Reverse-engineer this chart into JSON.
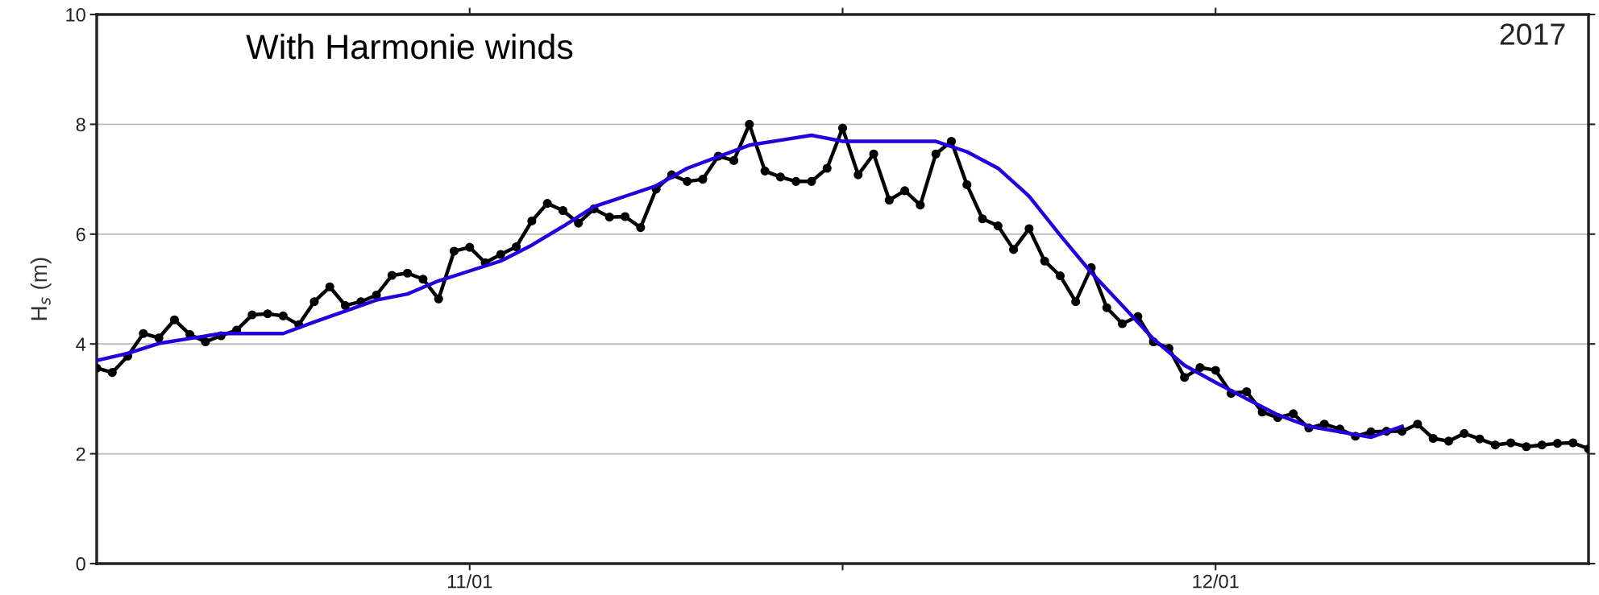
{
  "chart_data": {
    "type": "line",
    "title": "With Harmonie winds",
    "ylabel": "H$_{s}$ (m)",
    "annotations": [
      "2017"
    ],
    "xlim": [
      "2017-01-10T12:00",
      "2017-01-12T12:00"
    ],
    "xticks": [
      {
        "value": "2017-01-11T00:00",
        "label": "11/01"
      },
      {
        "value": "2017-01-11T12:00",
        "label": null
      },
      {
        "value": "2017-01-12T00:00",
        "label": "12/01"
      }
    ],
    "ylim": [
      0,
      10
    ],
    "yticks": [
      0,
      2,
      4,
      6,
      8,
      10
    ],
    "grid": "y",
    "line_style": "solid",
    "series": [
      {
        "color": "#000000",
        "marker": "circle",
        "x": [
          "2017-01-10T12:00",
          "2017-01-10T12:30",
          "2017-01-10T13:00",
          "2017-01-10T13:30",
          "2017-01-10T14:00",
          "2017-01-10T14:30",
          "2017-01-10T15:00",
          "2017-01-10T15:30",
          "2017-01-10T16:00",
          "2017-01-10T16:30",
          "2017-01-10T17:00",
          "2017-01-10T17:30",
          "2017-01-10T18:00",
          "2017-01-10T18:30",
          "2017-01-10T19:00",
          "2017-01-10T19:30",
          "2017-01-10T20:00",
          "2017-01-10T20:30",
          "2017-01-10T21:00",
          "2017-01-10T21:30",
          "2017-01-10T22:00",
          "2017-01-10T22:30",
          "2017-01-10T23:00",
          "2017-01-10T23:30",
          "2017-01-11T00:00",
          "2017-01-11T00:30",
          "2017-01-11T01:00",
          "2017-01-11T01:30",
          "2017-01-11T02:00",
          "2017-01-11T02:30",
          "2017-01-11T03:00",
          "2017-01-11T03:30",
          "2017-01-11T04:00",
          "2017-01-11T04:30",
          "2017-01-11T05:00",
          "2017-01-11T05:30",
          "2017-01-11T06:00",
          "2017-01-11T06:30",
          "2017-01-11T07:00",
          "2017-01-11T07:30",
          "2017-01-11T08:00",
          "2017-01-11T08:30",
          "2017-01-11T09:00",
          "2017-01-11T09:30",
          "2017-01-11T10:00",
          "2017-01-11T10:30",
          "2017-01-11T11:00",
          "2017-01-11T11:30",
          "2017-01-11T12:00",
          "2017-01-11T12:30",
          "2017-01-11T13:00",
          "2017-01-11T13:30",
          "2017-01-11T14:00",
          "2017-01-11T14:30",
          "2017-01-11T15:00",
          "2017-01-11T15:30",
          "2017-01-11T16:00",
          "2017-01-11T16:30",
          "2017-01-11T17:00",
          "2017-01-11T17:30",
          "2017-01-11T18:00",
          "2017-01-11T18:30",
          "2017-01-11T19:00",
          "2017-01-11T19:30",
          "2017-01-11T20:00",
          "2017-01-11T20:30",
          "2017-01-11T21:00",
          "2017-01-11T21:30",
          "2017-01-11T22:00",
          "2017-01-11T22:30",
          "2017-01-11T23:00",
          "2017-01-11T23:30",
          "2017-01-12T00:00",
          "2017-01-12T00:30",
          "2017-01-12T01:00",
          "2017-01-12T01:30",
          "2017-01-12T02:00",
          "2017-01-12T02:30",
          "2017-01-12T03:00",
          "2017-01-12T03:30",
          "2017-01-12T04:00",
          "2017-01-12T04:30",
          "2017-01-12T05:00",
          "2017-01-12T05:30",
          "2017-01-12T06:00",
          "2017-01-12T06:30",
          "2017-01-12T07:00",
          "2017-01-12T07:30",
          "2017-01-12T08:00",
          "2017-01-12T08:30",
          "2017-01-12T09:00",
          "2017-01-12T09:30",
          "2017-01-12T10:00",
          "2017-01-12T10:30",
          "2017-01-12T11:00",
          "2017-01-12T11:30",
          "2017-01-12T12:00"
        ],
        "values": [
          3.56,
          3.48,
          3.78,
          4.19,
          4.11,
          4.44,
          4.17,
          4.04,
          4.15,
          4.25,
          4.53,
          4.55,
          4.51,
          4.35,
          4.77,
          5.04,
          4.7,
          4.77,
          4.89,
          5.25,
          5.29,
          5.18,
          4.82,
          5.69,
          5.76,
          5.48,
          5.63,
          5.77,
          6.24,
          6.56,
          6.43,
          6.2,
          6.46,
          6.31,
          6.32,
          6.12,
          6.82,
          7.08,
          6.96,
          7.0,
          7.42,
          7.34,
          8.0,
          7.15,
          7.04,
          6.96,
          6.96,
          7.2,
          7.93,
          7.08,
          7.46,
          6.62,
          6.79,
          6.53,
          7.46,
          7.69,
          6.9,
          6.28,
          6.15,
          5.72,
          6.1,
          5.51,
          5.24,
          4.77,
          5.39,
          4.66,
          4.37,
          4.5,
          4.04,
          3.92,
          3.39,
          3.57,
          3.52,
          3.1,
          3.13,
          2.76,
          2.66,
          2.73,
          2.47,
          2.54,
          2.45,
          2.32,
          2.4,
          2.41,
          2.41,
          2.54,
          2.28,
          2.23,
          2.37,
          2.27,
          2.16,
          2.2,
          2.13,
          2.16,
          2.19,
          2.2,
          2.09
        ]
      },
      {
        "color": "#2200dd",
        "marker": "none",
        "x": [
          "2017-01-10T12:00",
          "2017-01-10T13:00",
          "2017-01-10T14:00",
          "2017-01-10T15:00",
          "2017-01-10T16:00",
          "2017-01-10T17:00",
          "2017-01-10T18:00",
          "2017-01-10T19:00",
          "2017-01-10T20:00",
          "2017-01-10T21:00",
          "2017-01-10T22:00",
          "2017-01-10T23:00",
          "2017-01-11T00:00",
          "2017-01-11T01:00",
          "2017-01-11T02:00",
          "2017-01-11T03:00",
          "2017-01-11T04:00",
          "2017-01-11T05:00",
          "2017-01-11T06:00",
          "2017-01-11T07:00",
          "2017-01-11T08:00",
          "2017-01-11T09:00",
          "2017-01-11T10:00",
          "2017-01-11T11:00",
          "2017-01-11T12:00",
          "2017-01-11T13:00",
          "2017-01-11T14:00",
          "2017-01-11T15:00",
          "2017-01-11T16:00",
          "2017-01-11T17:00",
          "2017-01-11T18:00",
          "2017-01-11T19:00",
          "2017-01-11T20:00",
          "2017-01-11T21:00",
          "2017-01-11T22:00",
          "2017-01-11T23:00",
          "2017-01-12T00:00",
          "2017-01-12T01:00",
          "2017-01-12T02:00",
          "2017-01-12T03:00",
          "2017-01-12T04:00",
          "2017-01-12T05:00",
          "2017-01-12T06:00"
        ],
        "values": [
          3.7,
          3.83,
          4.01,
          4.1,
          4.19,
          4.19,
          4.19,
          4.4,
          4.6,
          4.8,
          4.91,
          5.15,
          5.33,
          5.51,
          5.8,
          6.14,
          6.5,
          6.69,
          6.88,
          7.2,
          7.41,
          7.62,
          7.71,
          7.8,
          7.69,
          7.69,
          7.69,
          7.69,
          7.5,
          7.2,
          6.69,
          5.98,
          5.3,
          4.7,
          4.09,
          3.61,
          3.3,
          3.0,
          2.71,
          2.5,
          2.4,
          2.3,
          2.5
        ]
      }
    ]
  }
}
